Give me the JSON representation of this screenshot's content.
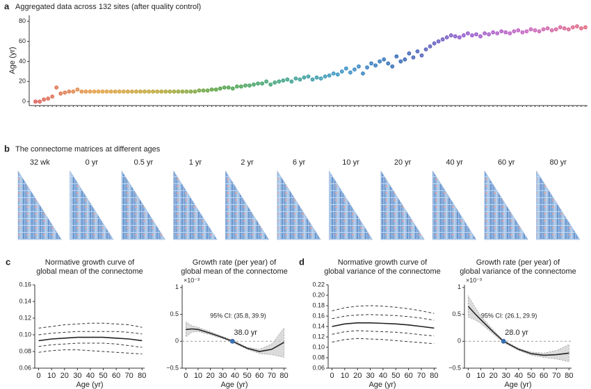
{
  "chart_data": [
    {
      "type": "dot",
      "panel": "a",
      "title": "Aggregated data across 132 sites (after quality control)",
      "y_label": "Age (yr)",
      "values": [
        0,
        0,
        2,
        3,
        5,
        14,
        8,
        9,
        10,
        10,
        12,
        10,
        10,
        10,
        10,
        10,
        10,
        10,
        10,
        10,
        10,
        10,
        10,
        10,
        10,
        10,
        10,
        10,
        10,
        10,
        10,
        10,
        10,
        10,
        10,
        10,
        10,
        10,
        10,
        11,
        11,
        11,
        12,
        12,
        13,
        14,
        14,
        13,
        15,
        15,
        16,
        16,
        17,
        18,
        18,
        20,
        17,
        19,
        20,
        21,
        22,
        20,
        23,
        22,
        24,
        25,
        22,
        24,
        23,
        25,
        26,
        28,
        27,
        30,
        33,
        29,
        32,
        35,
        28,
        34,
        38,
        36,
        40,
        42,
        38,
        35,
        45,
        40,
        42,
        48,
        44,
        50,
        46,
        52,
        55,
        58,
        60,
        62,
        64,
        66,
        65,
        64,
        66,
        68,
        66,
        67,
        65,
        68,
        67,
        69,
        68,
        70,
        69,
        68,
        70,
        71,
        69,
        70,
        72,
        71,
        70,
        72,
        73,
        71,
        72,
        74,
        73,
        72,
        74,
        75,
        73,
        74
      ],
      "color_stops": [
        "#d9534f",
        "#e39a3a",
        "#b8a22a",
        "#4a9e3a",
        "#34a07a",
        "#2f8fc6",
        "#2a5fb0",
        "#8b4fc9",
        "#c45bc0",
        "#e0607a"
      ],
      "ylim": [
        -4,
        86
      ],
      "yticks": [
        0,
        20,
        40,
        60,
        80
      ]
    },
    {
      "type": "matrices",
      "panel": "b",
      "title": "The connectome matrices at different ages",
      "labels": [
        "32 wk",
        "0 yr",
        "0.5 yr",
        "1 yr",
        "2 yr",
        "6 yr",
        "10 yr",
        "20 yr",
        "40 yr",
        "60 yr",
        "80 yr"
      ]
    },
    {
      "type": "curve",
      "panel": "c",
      "title": [
        "Normative growth curve of",
        "global mean of the connectome"
      ],
      "x_label": "Age (yr)",
      "x": [
        0,
        10,
        20,
        30,
        40,
        50,
        60,
        70,
        80
      ],
      "series": [
        {
          "color": "#222222",
          "dash": false,
          "values": [
            0.093,
            0.095,
            0.096,
            0.097,
            0.097,
            0.097,
            0.096,
            0.095,
            0.093
          ]
        },
        {
          "color": "#333333",
          "dash": true,
          "values": [
            0.1,
            0.102,
            0.103,
            0.104,
            0.104,
            0.104,
            0.104,
            0.103,
            0.101
          ]
        },
        {
          "color": "#333333",
          "dash": true,
          "values": [
            0.086,
            0.088,
            0.089,
            0.09,
            0.09,
            0.09,
            0.089,
            0.087,
            0.085
          ]
        },
        {
          "color": "#333333",
          "dash": true,
          "values": [
            0.108,
            0.11,
            0.112,
            0.113,
            0.114,
            0.114,
            0.113,
            0.112,
            0.109
          ]
        },
        {
          "color": "#333333",
          "dash": true,
          "values": [
            0.079,
            0.081,
            0.082,
            0.082,
            0.081,
            0.08,
            0.079,
            0.078,
            0.077
          ]
        }
      ],
      "xlim": [
        -3,
        82
      ],
      "xticks": [
        0,
        10,
        20,
        30,
        40,
        50,
        60,
        70,
        80
      ],
      "ylim": [
        0.06,
        0.16
      ],
      "yticks": [
        0.06,
        0.08,
        {
          "value": 0.1,
          "label": "0.10"
        },
        0.12,
        0.14,
        0.16
      ]
    },
    {
      "type": "rate",
      "title": [
        "Growth rate (per year) of",
        "global mean of the connectome"
      ],
      "x_label": "Age (yr)",
      "scale_label": "×10⁻³",
      "x": [
        0,
        5,
        10,
        20,
        30,
        38,
        50,
        60,
        70,
        80
      ],
      "series": [
        {
          "color": "#222222",
          "values": [
            0.22,
            0.23,
            0.22,
            0.15,
            0.07,
            0,
            -0.13,
            -0.19,
            -0.15,
            -0.02
          ]
        }
      ],
      "band": {
        "lower": [
          0.08,
          0.17,
          0.18,
          0.12,
          0.05,
          -0.02,
          -0.15,
          -0.23,
          -0.25,
          -0.3
        ],
        "upper": [
          0.36,
          0.29,
          0.26,
          0.18,
          0.09,
          0.02,
          -0.11,
          -0.15,
          -0.05,
          0.25
        ]
      },
      "point": {
        "x": 38.0,
        "y": 0,
        "label": "38.0 yr",
        "color": "#3b6fb0"
      },
      "ci_label": "95% CI: (35.8, 39.9)",
      "xlim": [
        -3,
        82
      ],
      "xticks": [
        0,
        10,
        20,
        30,
        40,
        50,
        60,
        70,
        80
      ],
      "ylim": [
        -0.5,
        1.05
      ],
      "yticks": [
        {
          "value": -0.5,
          "label": "−0.5"
        },
        0,
        0.5,
        1
      ]
    },
    {
      "type": "curve",
      "panel": "d",
      "title": [
        "Normative growth curve of",
        "global variance of the connectome"
      ],
      "x_label": "Age (yr)",
      "x": [
        0,
        10,
        20,
        30,
        40,
        50,
        60,
        70,
        80
      ],
      "series": [
        {
          "color": "#222222",
          "dash": false,
          "values": [
            0.14,
            0.145,
            0.147,
            0.147,
            0.146,
            0.145,
            0.143,
            0.14,
            0.137
          ]
        },
        {
          "color": "#333333",
          "dash": true,
          "values": [
            0.155,
            0.16,
            0.162,
            0.163,
            0.162,
            0.161,
            0.159,
            0.156,
            0.152
          ]
        },
        {
          "color": "#333333",
          "dash": true,
          "values": [
            0.125,
            0.13,
            0.132,
            0.131,
            0.13,
            0.129,
            0.127,
            0.124,
            0.122
          ]
        },
        {
          "color": "#333333",
          "dash": true,
          "values": [
            0.17,
            0.176,
            0.179,
            0.18,
            0.179,
            0.177,
            0.174,
            0.17,
            0.165
          ]
        },
        {
          "color": "#333333",
          "dash": true,
          "values": [
            0.11,
            0.115,
            0.117,
            0.116,
            0.115,
            0.113,
            0.111,
            0.109,
            0.107
          ]
        }
      ],
      "xlim": [
        -3,
        82
      ],
      "xticks": [
        0,
        10,
        20,
        30,
        40,
        50,
        60,
        70,
        80
      ],
      "ylim": [
        0.06,
        0.22
      ],
      "yticks": [
        0.06,
        0.08,
        {
          "value": 0.1,
          "label": "0.10"
        },
        0.12,
        0.14,
        0.16,
        0.18,
        {
          "value": 0.2,
          "label": "0.20"
        },
        0.22
      ]
    },
    {
      "type": "rate",
      "title": [
        "Growth rate (per year) of",
        "global variance of the connectome"
      ],
      "x_label": "Age (yr)",
      "scale_label": "×10⁻³",
      "x": [
        0,
        5,
        10,
        20,
        28,
        40,
        50,
        60,
        70,
        80
      ],
      "series": [
        {
          "color": "#222222",
          "values": [
            0.65,
            0.52,
            0.4,
            0.17,
            0,
            -0.15,
            -0.23,
            -0.26,
            -0.25,
            -0.22
          ]
        }
      ],
      "band": {
        "lower": [
          0.45,
          0.4,
          0.33,
          0.13,
          -0.02,
          -0.17,
          -0.26,
          -0.3,
          -0.33,
          -0.38
        ],
        "upper": [
          0.85,
          0.65,
          0.47,
          0.21,
          0.02,
          -0.13,
          -0.2,
          -0.22,
          -0.17,
          -0.06
        ]
      },
      "point": {
        "x": 28.0,
        "y": 0,
        "label": "28.0 yr",
        "color": "#3b6fb0"
      },
      "ci_label": "95% CI: (26.1, 29.9)",
      "xlim": [
        -3,
        82
      ],
      "xticks": [
        0,
        10,
        20,
        30,
        40,
        50,
        60,
        70,
        80
      ],
      "ylim": [
        -0.5,
        1.05
      ],
      "yticks": [
        {
          "value": -0.5,
          "label": "−0.5"
        },
        0,
        0.5,
        1
      ]
    }
  ]
}
